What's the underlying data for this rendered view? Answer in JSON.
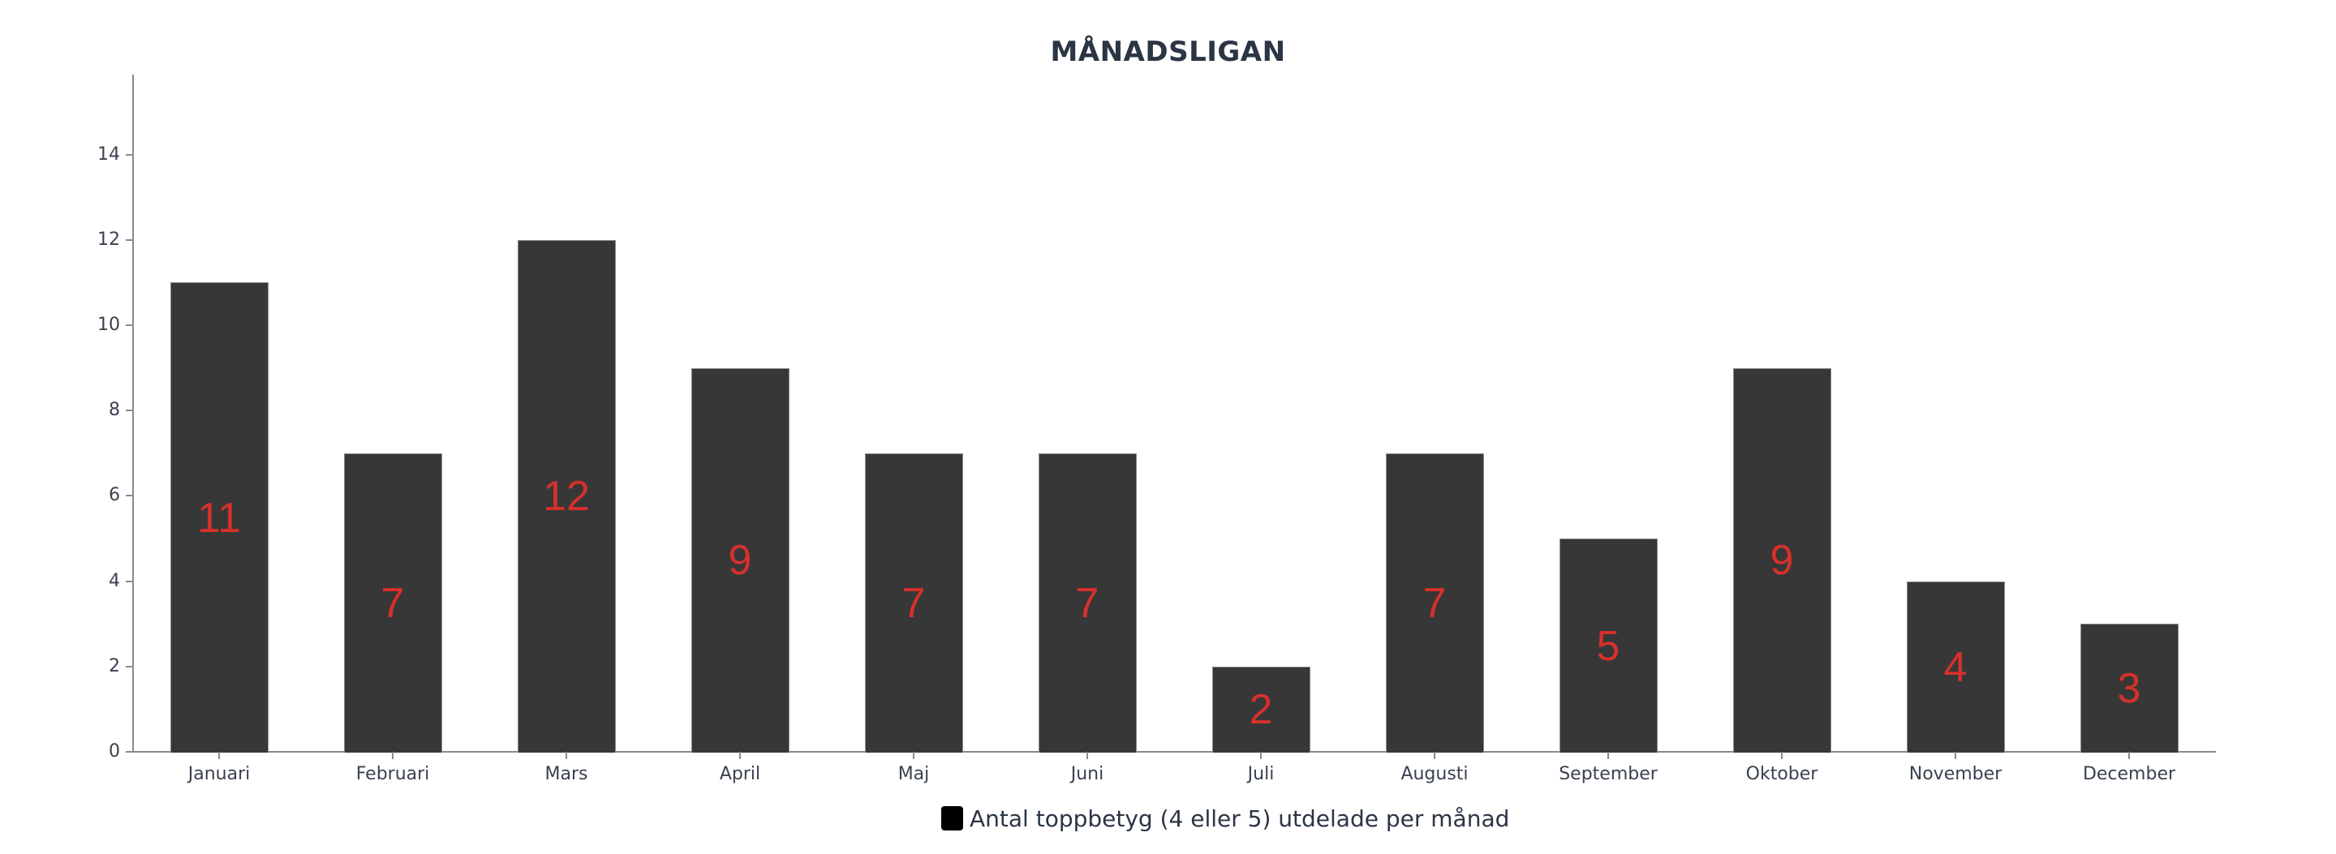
{
  "title": "MÅNADSLIGAN",
  "legend": {
    "label": "Antal toppbetyg (4 eller 5) utdelade per månad",
    "swatch_color": "#000000"
  },
  "colors": {
    "bar": "#373737",
    "bar_border": "#8c8c8c",
    "data_label": "#d7302b",
    "axis": "#8a8a8a",
    "text": "#2b3544"
  },
  "y_ticks": [
    "0",
    "2",
    "4",
    "6",
    "8",
    "10",
    "12",
    "14"
  ],
  "chart_data": {
    "type": "bar",
    "title": "MÅNADSLIGAN",
    "xlabel": "",
    "ylabel": "",
    "categories": [
      "Januari",
      "Februari",
      "Mars",
      "April",
      "Maj",
      "Juni",
      "Juli",
      "Augusti",
      "September",
      "Oktober",
      "November",
      "December"
    ],
    "series": [
      {
        "name": "Antal toppbetyg (4 eller 5) utdelade per månad",
        "values": [
          11,
          7,
          12,
          9,
          7,
          7,
          2,
          7,
          5,
          9,
          4,
          3
        ]
      }
    ],
    "value_labels": [
      "11",
      "7",
      "12",
      "9",
      "7",
      "7",
      "2",
      "7",
      "5",
      "9",
      "4",
      "3"
    ],
    "ylim": [
      0,
      15.5
    ],
    "yticks": [
      0,
      2,
      4,
      6,
      8,
      10,
      12,
      14
    ],
    "grid": false,
    "legend_position": "bottom"
  }
}
